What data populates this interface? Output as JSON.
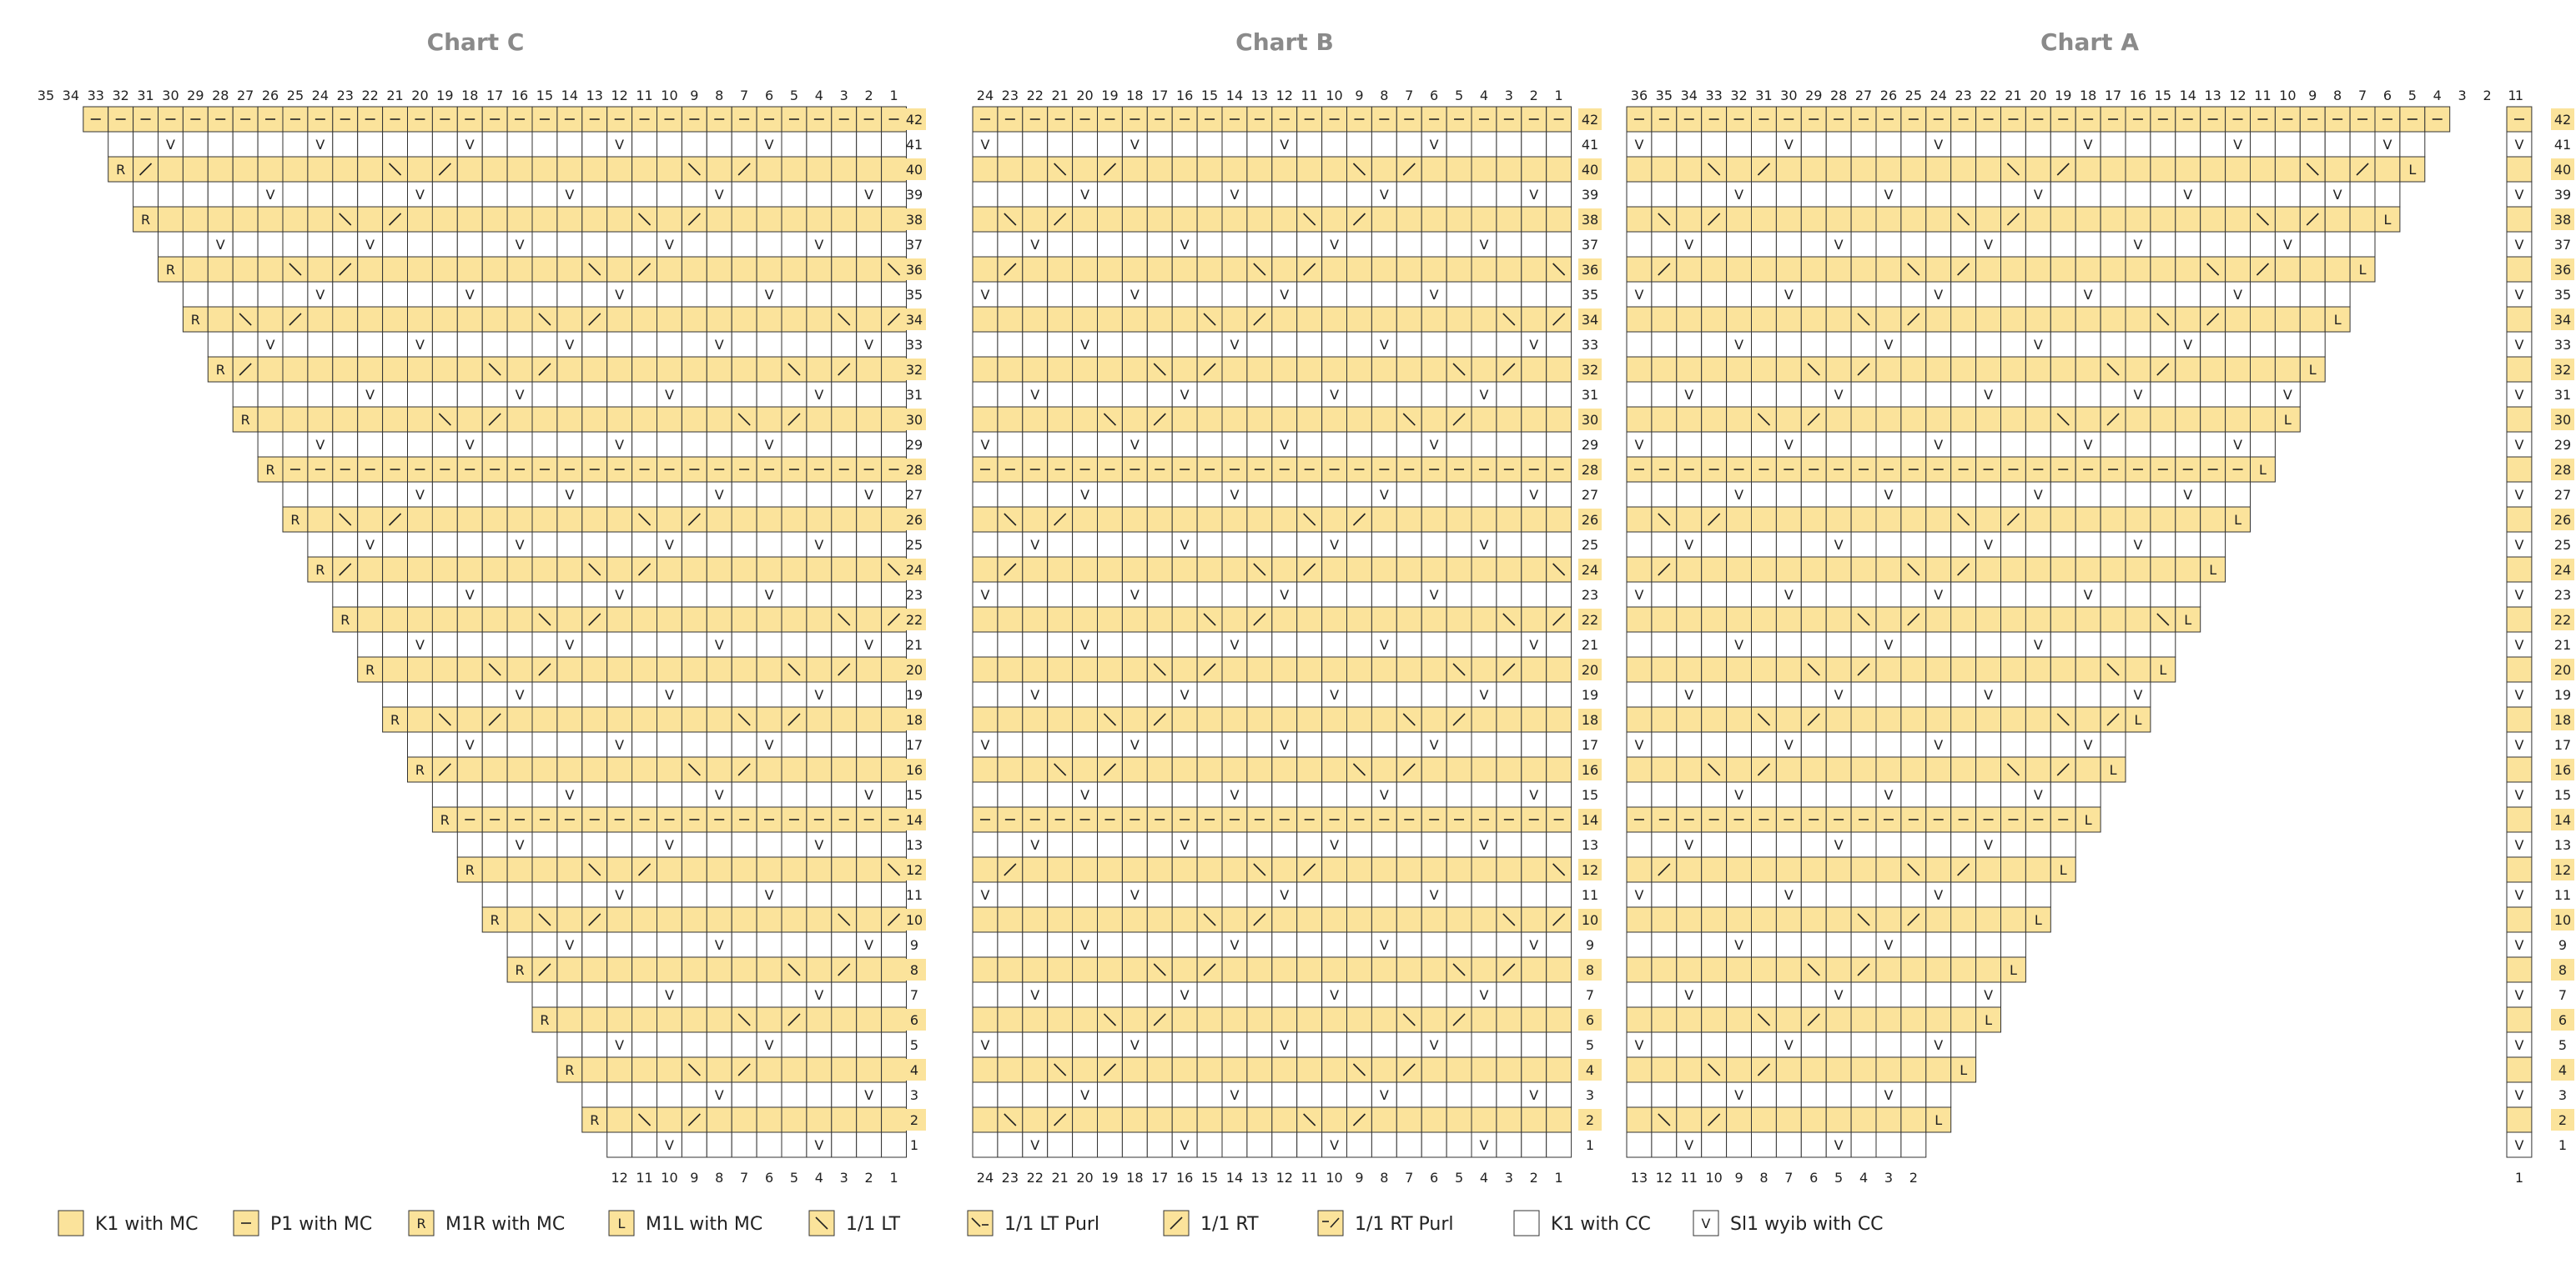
{
  "chart_data": {
    "type": "table",
    "colors": {
      "mc": "#fbe39b",
      "cc": "#ffffff",
      "grid": "#333333",
      "title": "#8a8a8a"
    },
    "charts": [
      {
        "title": "Chart C",
        "columns": 35,
        "bottom_labels": [
          "12",
          "11",
          "10",
          "9",
          "8",
          "7",
          "6",
          "5",
          "4",
          "3",
          "2",
          "1"
        ],
        "shape": "widens to the left by one stitch every mc row",
        "rows": 42
      },
      {
        "title": "Chart B",
        "columns": 24,
        "bottom_labels": [
          "24",
          "23",
          "22",
          "21",
          "20",
          "19",
          "18",
          "17",
          "16",
          "15",
          "14",
          "13",
          "12",
          "11",
          "10",
          "9",
          "8",
          "7",
          "6",
          "5",
          "4",
          "3",
          "2",
          "1"
        ],
        "shape": "rectangle",
        "rows": 42
      },
      {
        "title": "Chart A",
        "columns": 36,
        "bottom_labels": [
          "13",
          "12",
          "11",
          "10",
          "9",
          "8",
          "7",
          "6",
          "5",
          "4",
          "3",
          "2"
        ],
        "shape": "widens to the right by one stitch every mc row; column 1 separate",
        "rows": 42,
        "separate_column_label": "1"
      }
    ],
    "row_numbers": [
      "1",
      "2",
      "3",
      "4",
      "5",
      "6",
      "7",
      "8",
      "9",
      "10",
      "11",
      "12",
      "13",
      "14",
      "15",
      "16",
      "17",
      "18",
      "19",
      "20",
      "21",
      "22",
      "23",
      "24",
      "25",
      "26",
      "27",
      "28",
      "29",
      "30",
      "31",
      "32",
      "33",
      "34",
      "35",
      "36",
      "37",
      "38",
      "39",
      "40",
      "41",
      "42"
    ],
    "symbols": {
      "purl": "–",
      "m1r": "R",
      "m1l": "L",
      "lt": "╲",
      "rt": "╱",
      "slip": "V"
    },
    "legend": [
      {
        "key": "k1-mc",
        "label": "K1 with MC",
        "fill": "#fbe39b",
        "glyph": ""
      },
      {
        "key": "p1-mc",
        "label": "P1 with MC",
        "fill": "#fbe39b",
        "glyph": "–"
      },
      {
        "key": "m1r-mc",
        "label": "M1R with MC",
        "fill": "#fbe39b",
        "glyph": "R"
      },
      {
        "key": "m1l-mc",
        "label": "M1L with MC",
        "fill": "#fbe39b",
        "glyph": "L"
      },
      {
        "key": "lt",
        "label": "1/1 LT",
        "fill": "#fbe39b",
        "glyph": "╲"
      },
      {
        "key": "lt-purl",
        "label": "1/1 LT Purl",
        "fill": "#fbe39b",
        "glyph": "╲–"
      },
      {
        "key": "rt",
        "label": "1/1 RT",
        "fill": "#fbe39b",
        "glyph": "╱"
      },
      {
        "key": "rt-purl",
        "label": "1/1 RT Purl",
        "fill": "#fbe39b",
        "glyph": "–╱"
      },
      {
        "key": "k1-cc",
        "label": "K1 with CC",
        "fill": "#ffffff",
        "glyph": ""
      },
      {
        "key": "sl1-cc",
        "label": "Sl1 wyib with CC",
        "fill": "#ffffff",
        "glyph": "V"
      }
    ]
  }
}
